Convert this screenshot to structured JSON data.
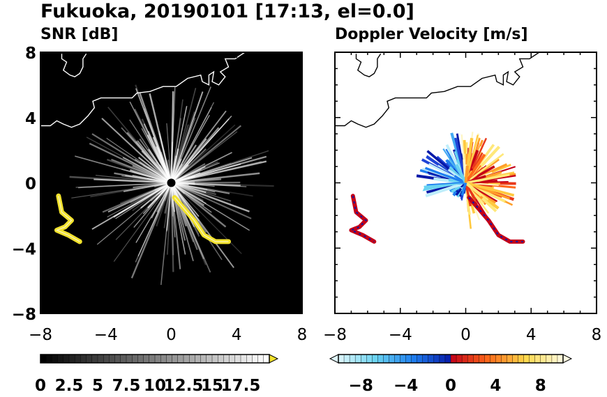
{
  "title": "Fukuoka, 20190101 [17:13, el=0.0]",
  "chart_data": [
    {
      "type": "heatmap",
      "title": "SNR [dB]",
      "xlim": [
        -8,
        8
      ],
      "ylim": [
        -8,
        8
      ],
      "x_ticks": [
        "−8",
        "−4",
        "0",
        "4",
        "8"
      ],
      "y_ticks": [
        "−8",
        "−4",
        "0",
        "4",
        "8"
      ],
      "background": "#000000",
      "echo_color": "#ffffff",
      "coastline_color": "#ffffff",
      "colorbar": {
        "orientation": "horizontal",
        "range": [
          0,
          20
        ],
        "extend": "max",
        "tick_labels": [
          "0",
          "2.5",
          "5",
          "7.5",
          "10",
          "12.5",
          "15",
          "17.5"
        ],
        "colors": [
          "#000000",
          "#ffffff"
        ],
        "over_color": "#f2e22c"
      },
      "features": [
        {
          "name": "radar-site",
          "x": 0.0,
          "y": 0.0
        },
        {
          "name": "rain-echo-west",
          "points": [
            [
              -6.9,
              -0.8
            ],
            [
              -6.7,
              -1.8
            ],
            [
              -6.1,
              -2.3
            ],
            [
              -6.5,
              -2.7
            ],
            [
              -7.0,
              -2.9
            ],
            [
              -6.3,
              -3.2
            ],
            [
              -5.6,
              -3.6
            ]
          ]
        },
        {
          "name": "rain-echo-south",
          "points": [
            [
              0.2,
              -0.9
            ],
            [
              0.8,
              -1.6
            ],
            [
              1.4,
              -2.3
            ],
            [
              2.0,
              -3.2
            ],
            [
              2.7,
              -3.6
            ],
            [
              3.5,
              -3.6
            ]
          ]
        }
      ]
    },
    {
      "type": "heatmap",
      "title": "Doppler Velocity [m/s]",
      "xlim": [
        -8,
        8
      ],
      "ylim": [
        -8,
        8
      ],
      "x_ticks": [
        "−8",
        "−4",
        "0",
        "4",
        "8"
      ],
      "y_ticks": [],
      "background": "#ffffff",
      "coastline_color": "#000000",
      "colorbar": {
        "orientation": "horizontal",
        "range": [
          -10,
          10
        ],
        "extend": "both",
        "tick_labels": [
          "−8",
          "−4",
          "0",
          "4",
          "8"
        ],
        "colors": [
          "#dff6fb",
          "#69d3f1",
          "#1f7ff0",
          "#0719a8",
          "#c40018",
          "#ff6a1a",
          "#ffd84a",
          "#fffbe0"
        ]
      },
      "features": [
        {
          "name": "approaching-sector",
          "from_deg": 95,
          "to_deg": 265,
          "sign": "negative"
        },
        {
          "name": "receding-sector",
          "from_deg": -85,
          "to_deg": 95,
          "sign": "positive"
        }
      ]
    }
  ]
}
